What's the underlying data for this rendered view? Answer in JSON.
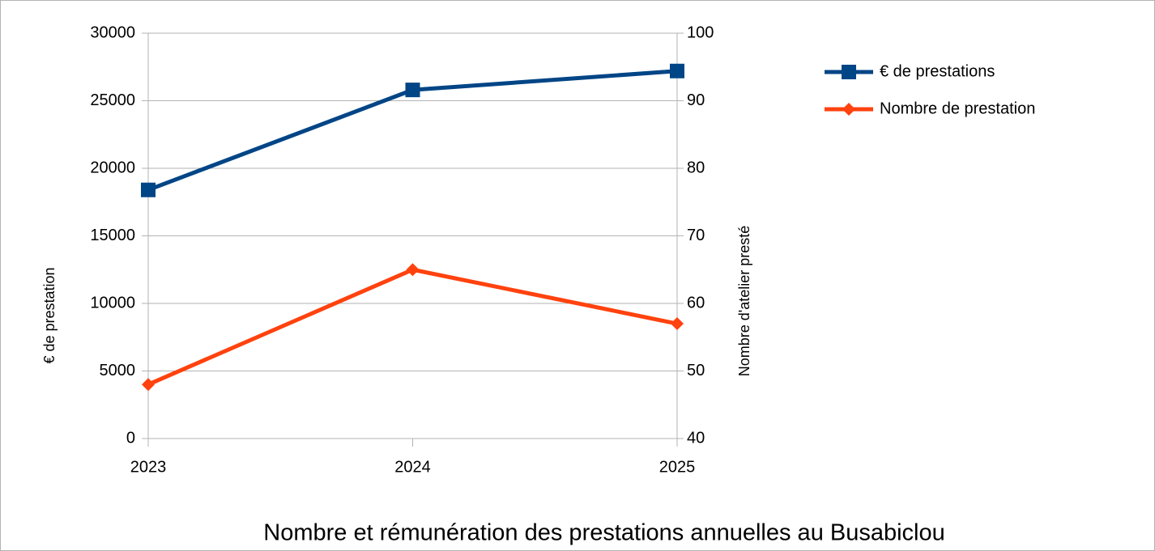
{
  "chart_data": {
    "type": "line",
    "title": "Nombre et rémunération des prestations annuelles au Busabiclou",
    "y_label": "€ de prestation",
    "y2_label": "Nombre d'atelier presté",
    "categories": [
      "2023",
      "2024",
      "2025"
    ],
    "series": [
      {
        "name": "€ de prestations",
        "color": "#004586",
        "marker": "square",
        "values": [
          18400,
          25800,
          27200
        ]
      },
      {
        "name": "Nombre de prestation",
        "color": "#ff420e",
        "marker": "diamond",
        "axis": "y2",
        "values": [
          48,
          65,
          57
        ]
      }
    ],
    "ylim": [
      0,
      30000
    ],
    "yticks": [
      0,
      5000,
      10000,
      15000,
      20000,
      25000,
      30000
    ],
    "y2lim": [
      40,
      100
    ],
    "y2ticks": [
      40,
      50,
      60,
      70,
      80,
      90,
      100
    ],
    "grid": true,
    "legend": "right"
  }
}
